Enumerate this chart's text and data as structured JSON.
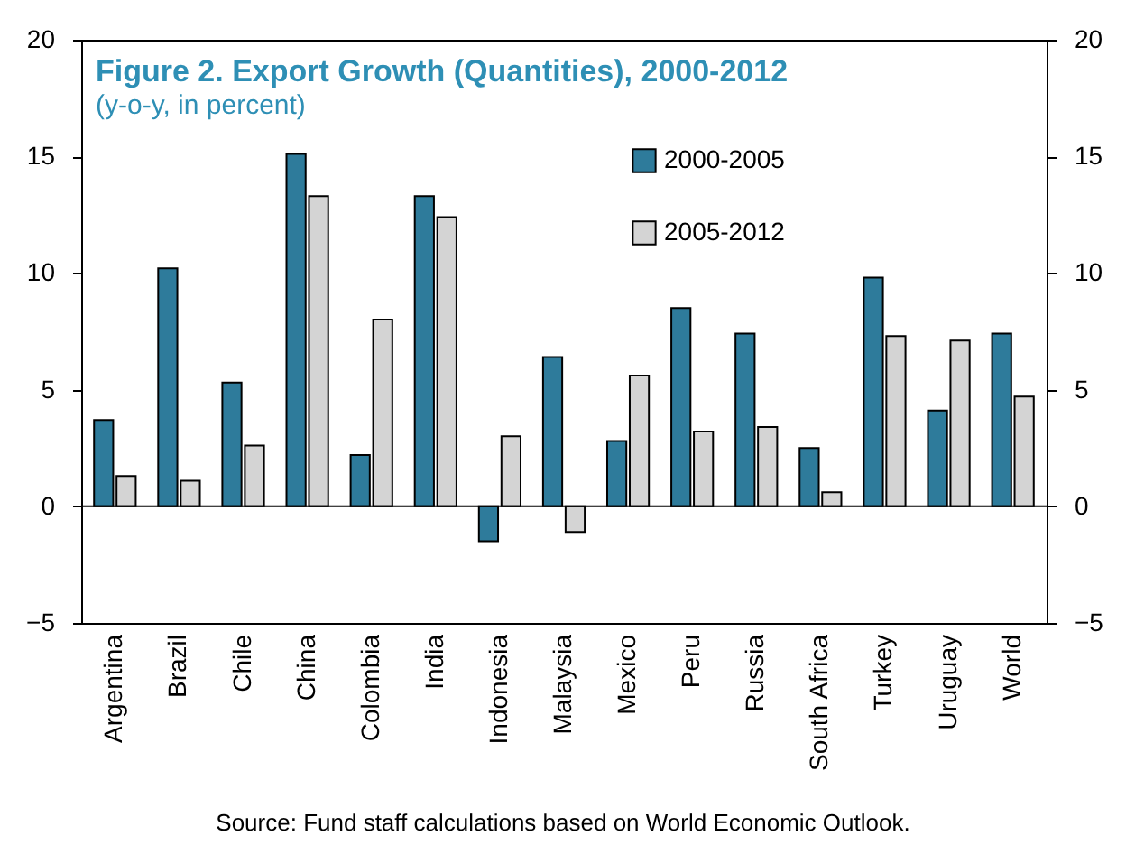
{
  "chart_data": {
    "type": "bar",
    "title": "Figure 2. Export Growth (Quantities),  2000-2012",
    "subtitle": "(y-o-y, in percent)",
    "categories": [
      "Argentina",
      "Brazil",
      "Chile",
      "China",
      "Colombia",
      "India",
      "Indonesia",
      "Malaysia",
      "Mexico",
      "Peru",
      "Russia",
      "South Africa",
      "Turkey",
      "Uruguay",
      "World"
    ],
    "series": [
      {
        "name": "2000-2005",
        "color": "#2e7b9b",
        "values": [
          3.7,
          10.2,
          5.3,
          15.1,
          2.2,
          13.3,
          -1.5,
          6.4,
          2.8,
          8.5,
          7.4,
          2.5,
          9.8,
          4.1,
          7.4
        ]
      },
      {
        "name": "2005-2012",
        "color": "#d4d4d4",
        "values": [
          1.3,
          1.1,
          2.6,
          13.3,
          8.0,
          12.4,
          3.0,
          -1.1,
          5.6,
          3.2,
          3.4,
          0.6,
          7.3,
          7.1,
          4.7
        ]
      }
    ],
    "ylim": [
      -5,
      20
    ],
    "yticks": [
      -5,
      0,
      5,
      10,
      15,
      20
    ],
    "y2lim": [
      -5,
      20
    ],
    "y2ticks": [
      -5,
      0,
      5,
      10,
      15,
      20
    ],
    "ref_lines": [
      {
        "axis": "y",
        "value": 0
      }
    ],
    "legend": "top right",
    "annotations": [
      "Source: Fund staff calculations based on World Economic Outlook."
    ]
  }
}
